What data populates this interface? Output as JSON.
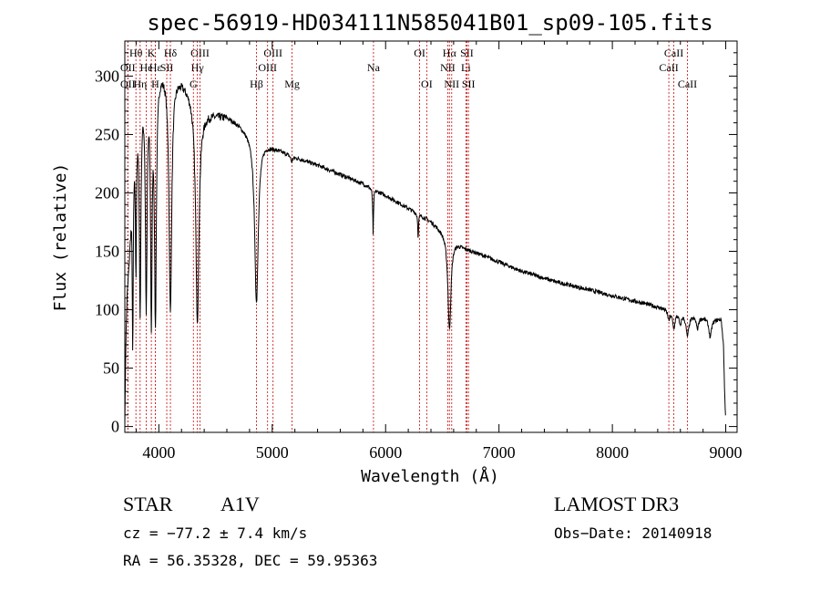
{
  "chart_data": {
    "type": "line",
    "title": "spec-56919-HD034111N585041B01_sp09-105.fits",
    "xlabel": "Wavelength (Å)",
    "ylabel": "Flux (relative)",
    "xlim": [
      3700,
      9100
    ],
    "ylim": [
      -5,
      330
    ],
    "xticks": [
      4000,
      5000,
      6000,
      7000,
      8000,
      9000
    ],
    "yticks": [
      0,
      50,
      100,
      150,
      200,
      250,
      300
    ],
    "grid": false,
    "continuum": [
      [
        3700,
        5
      ],
      [
        3710,
        80
      ],
      [
        3720,
        115
      ],
      [
        3740,
        150
      ],
      [
        3760,
        200
      ],
      [
        3780,
        240
      ],
      [
        3800,
        262
      ],
      [
        3830,
        282
      ],
      [
        3870,
        298
      ],
      [
        3900,
        305
      ],
      [
        3950,
        308
      ],
      [
        4000,
        310
      ],
      [
        4050,
        308
      ],
      [
        4100,
        305
      ],
      [
        4150,
        302
      ],
      [
        4200,
        298
      ],
      [
        4250,
        292
      ],
      [
        4300,
        285
      ],
      [
        4350,
        275
      ],
      [
        4400,
        270
      ],
      [
        4500,
        268
      ],
      [
        4600,
        266
      ],
      [
        4700,
        260
      ],
      [
        4800,
        252
      ],
      [
        4900,
        246
      ],
      [
        5000,
        240
      ],
      [
        5200,
        231
      ],
      [
        5400,
        224
      ],
      [
        5600,
        216
      ],
      [
        5800,
        208
      ],
      [
        6000,
        198
      ],
      [
        6200,
        187
      ],
      [
        6400,
        176
      ],
      [
        6600,
        160
      ],
      [
        6700,
        153
      ],
      [
        6800,
        149
      ],
      [
        7000,
        141
      ],
      [
        7200,
        133
      ],
      [
        7500,
        124
      ],
      [
        7800,
        117
      ],
      [
        8000,
        112
      ],
      [
        8300,
        105
      ],
      [
        8500,
        100
      ],
      [
        8700,
        95
      ],
      [
        8900,
        92
      ],
      [
        8960,
        92
      ],
      [
        8980,
        70
      ],
      [
        8990,
        30
      ],
      [
        9000,
        5
      ]
    ],
    "absorption_lines": [
      {
        "center": 3770,
        "depth": 150,
        "width": 5
      },
      {
        "center": 3798,
        "depth": 120,
        "width": 5
      },
      {
        "center": 3835,
        "depth": 180,
        "width": 8
      },
      {
        "center": 3889,
        "depth": 190,
        "width": 9
      },
      {
        "center": 3934,
        "depth": 200,
        "width": 8
      },
      {
        "center": 3970,
        "depth": 210,
        "width": 10
      },
      {
        "center": 4102,
        "depth": 205,
        "width": 14
      },
      {
        "center": 4340,
        "depth": 185,
        "width": 17
      },
      {
        "center": 4861,
        "depth": 142,
        "width": 19
      },
      {
        "center": 5172,
        "depth": 5,
        "width": 10
      },
      {
        "center": 5890,
        "depth": 40,
        "width": 4
      },
      {
        "center": 6287,
        "depth": 20,
        "width": 4
      },
      {
        "center": 6563,
        "depth": 80,
        "width": 16
      },
      {
        "center": 8498,
        "depth": 8,
        "width": 10
      },
      {
        "center": 8542,
        "depth": 14,
        "width": 13
      },
      {
        "center": 8598,
        "depth": 10,
        "width": 10
      },
      {
        "center": 8662,
        "depth": 18,
        "width": 15
      },
      {
        "center": 8750,
        "depth": 10,
        "width": 11
      },
      {
        "center": 8863,
        "depth": 16,
        "width": 14
      }
    ],
    "marker_lines": [
      {
        "label": "Hθ",
        "x": 3798,
        "row": 1
      },
      {
        "label": "OII",
        "x": 3727,
        "row": 2
      },
      {
        "label": "OII",
        "x": 3727,
        "row": 3
      },
      {
        "label": "He",
        "x": 3889,
        "row": 2
      },
      {
        "label": "Hη",
        "x": 3835,
        "row": 3
      },
      {
        "label": "K",
        "x": 3934,
        "row": 1
      },
      {
        "label": "H",
        "x": 3969,
        "row": 3
      },
      {
        "label": "Hε",
        "x": 3970,
        "row": 2
      },
      {
        "label": "SII",
        "x": 4070,
        "row": 2
      },
      {
        "label": "Hδ",
        "x": 4102,
        "row": 1
      },
      {
        "label": "OIII",
        "x": 4363,
        "row": 1
      },
      {
        "label": "Hγ",
        "x": 4340,
        "row": 2
      },
      {
        "label": "G",
        "x": 4305,
        "row": 3
      },
      {
        "label": "Hβ",
        "x": 4861,
        "row": 3
      },
      {
        "label": "OIII",
        "x": 4959,
        "row": 2
      },
      {
        "label": "OIII",
        "x": 5007,
        "row": 1
      },
      {
        "label": "Mg",
        "x": 5175,
        "row": 3
      },
      {
        "label": "Na",
        "x": 5893,
        "row": 2
      },
      {
        "label": "OI",
        "x": 6300,
        "row": 1
      },
      {
        "label": "OI",
        "x": 6363,
        "row": 3
      },
      {
        "label": "Hα",
        "x": 6563,
        "row": 1
      },
      {
        "label": "NII",
        "x": 6548,
        "row": 2
      },
      {
        "label": "NII",
        "x": 6583,
        "row": 3
      },
      {
        "label": "Li",
        "x": 6708,
        "row": 2
      },
      {
        "label": "SII",
        "x": 6717,
        "row": 1
      },
      {
        "label": "SII",
        "x": 6731,
        "row": 3
      },
      {
        "label": "CaII",
        "x": 8542,
        "row": 1
      },
      {
        "label": "CaII",
        "x": 8498,
        "row": 2
      },
      {
        "label": "CaII",
        "x": 8662,
        "row": 3
      }
    ]
  },
  "info": {
    "star": "STAR",
    "subclass": "A1V",
    "survey": "LAMOST DR3",
    "cz": "cz = −77.2 ± 7.4 km/s",
    "obs_date": "Obs−Date: 20140918",
    "radec": "RA =  56.35328, DEC =  59.95363"
  }
}
